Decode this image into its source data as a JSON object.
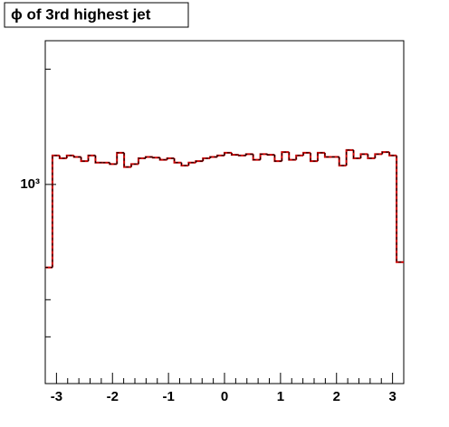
{
  "chart_data": {
    "type": "histogram",
    "title": "ϕ of 3rd highest jet",
    "bins": [
      -3.2,
      -3.072,
      -2.944,
      -2.816,
      -2.688,
      -2.56,
      -2.432,
      -2.304,
      -2.176,
      -2.048,
      -1.92,
      -1.792,
      -1.664,
      -1.536,
      -1.408,
      -1.28,
      -1.152,
      -1.024,
      -0.896,
      -0.768,
      -0.64,
      -0.512,
      -0.384,
      -0.256,
      -0.128,
      0,
      0.128,
      0.256,
      0.384,
      0.512,
      0.64,
      0.768,
      0.896,
      1.024,
      1.152,
      1.28,
      1.408,
      1.536,
      1.664,
      1.792,
      1.92,
      2.048,
      2.176,
      2.304,
      2.432,
      2.56,
      2.688,
      2.816,
      2.944,
      3.072,
      3.2
    ],
    "values": [
      607,
      1190,
      1170,
      1190,
      1180,
      1150,
      1190,
      1140,
      1140,
      1130,
      1210,
      1110,
      1130,
      1170,
      1180,
      1175,
      1160,
      1170,
      1140,
      1120,
      1140,
      1150,
      1170,
      1180,
      1190,
      1210,
      1195,
      1190,
      1200,
      1160,
      1200,
      1195,
      1150,
      1215,
      1160,
      1190,
      1210,
      1150,
      1210,
      1180,
      1180,
      1120,
      1230,
      1170,
      1200,
      1170,
      1200,
      1215,
      1190,
      627
    ],
    "color": "#cc0000",
    "overlay_color": "#000000",
    "xlim": [
      -3.2,
      3.2
    ],
    "xticks": [
      -3,
      -2,
      -1,
      0,
      1,
      2,
      3
    ],
    "xminor_ticks": [
      -3.2,
      -2.8,
      -2.6,
      -2.4,
      -2.2,
      -1.8,
      -1.6,
      -1.4,
      -1.2,
      -0.8,
      -0.6,
      -0.4,
      -0.2,
      0.2,
      0.4,
      0.6,
      0.8,
      1.2,
      1.4,
      1.6,
      1.8,
      2.2,
      2.4,
      2.6,
      2.8,
      3.2
    ],
    "ylim": [
      302,
      2373
    ],
    "log_y": true,
    "yticks": [
      {
        "value": 1000,
        "label": "10³"
      }
    ],
    "yminor_ticks": [
      400,
      500,
      2000
    ]
  }
}
